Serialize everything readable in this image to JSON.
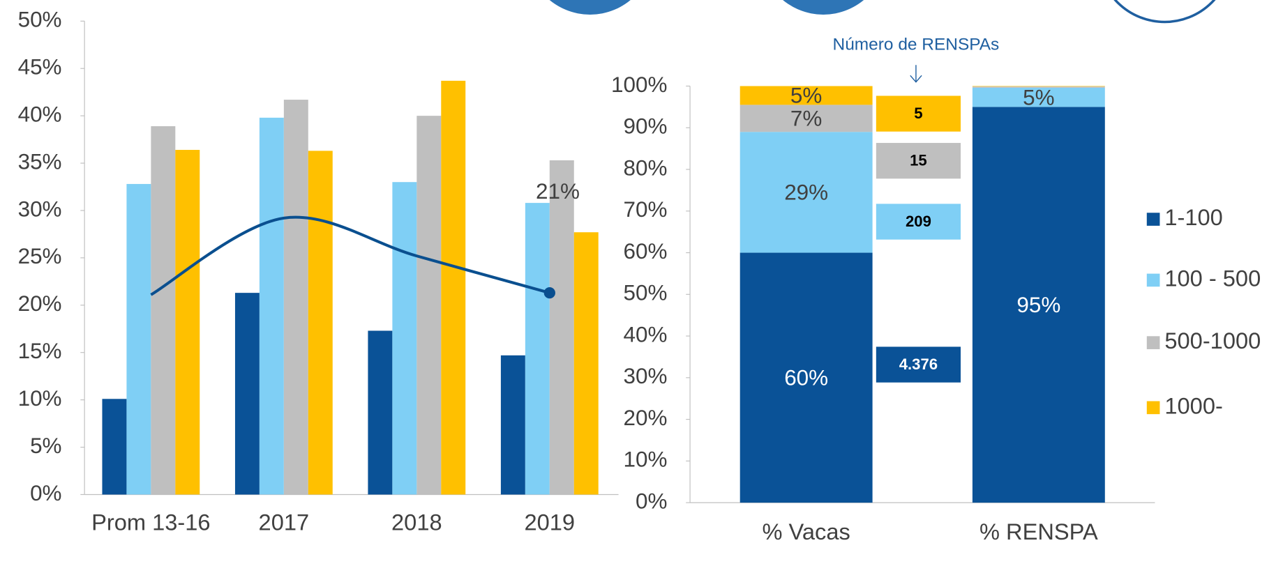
{
  "chart_data": [
    {
      "type": "bar",
      "categories": [
        "Prom 13-16",
        "2017",
        "2018",
        "2019"
      ],
      "series": [
        {
          "color": "#0a5297",
          "values": [
            10.1,
            21.3,
            17.3,
            14.7
          ]
        },
        {
          "color": "#7fcff5",
          "values": [
            32.8,
            39.8,
            33.0,
            30.8
          ]
        },
        {
          "color": "#bfbfbf",
          "values": [
            38.9,
            41.7,
            40.0,
            35.3
          ]
        },
        {
          "color": "#ffc000",
          "values": [
            36.4,
            36.3,
            43.7,
            27.7
          ]
        },
        {
          "type": "line",
          "color": "#0a4f8f",
          "values": [
            21.1,
            29.2,
            25.2,
            21.3
          ],
          "value_labels": [
            null,
            null,
            null,
            "21%"
          ]
        }
      ],
      "ylim": [
        0,
        50
      ],
      "yticks": [
        {
          "value": 0,
          "label": "0%"
        },
        {
          "value": 5,
          "label": "5%"
        },
        {
          "value": 10,
          "label": "10%"
        },
        {
          "value": 15,
          "label": "15%"
        },
        {
          "value": 20,
          "label": "20%"
        },
        {
          "value": 25,
          "label": "25%"
        },
        {
          "value": 30,
          "label": "30%"
        },
        {
          "value": 35,
          "label": "35%"
        },
        {
          "value": 40,
          "label": "40%"
        },
        {
          "value": 45,
          "label": "45%"
        },
        {
          "value": 50,
          "label": "50%"
        }
      ]
    },
    {
      "type": "stacked_bar",
      "categories": [
        "% Vacas",
        "% RENSPA"
      ],
      "series": [
        {
          "name": "1-100",
          "color": "#0a5297",
          "values": [
            60,
            95
          ],
          "value_labels": [
            "60%",
            "95%"
          ]
        },
        {
          "name": "100 - 500",
          "color": "#7fcff5",
          "values": [
            29,
            4.6
          ],
          "value_labels": [
            "29%",
            "5%"
          ]
        },
        {
          "name": "500-1000",
          "color": "#bfbfbf",
          "values": [
            6.5,
            0.3
          ],
          "value_labels": [
            "7%",
            null
          ]
        },
        {
          "name": "1000-",
          "color": "#ffc000",
          "values": [
            4.5,
            0.1
          ],
          "value_labels": [
            "5%",
            null
          ]
        }
      ],
      "ylim": [
        0,
        100
      ],
      "yticks": [
        {
          "value": 0,
          "label": "0%"
        },
        {
          "value": 10,
          "label": "10%"
        },
        {
          "value": 20,
          "label": "20%"
        },
        {
          "value": 30,
          "label": "30%"
        },
        {
          "value": 40,
          "label": "40%"
        },
        {
          "value": 50,
          "label": "50%"
        },
        {
          "value": 60,
          "label": "60%"
        },
        {
          "value": 70,
          "label": "70%"
        },
        {
          "value": 80,
          "label": "80%"
        },
        {
          "value": 90,
          "label": "90%"
        },
        {
          "value": 100,
          "label": "100%"
        }
      ],
      "annotation": "Número de RENSPAs",
      "box_labels": [
        "4.376",
        "209",
        "15",
        "5"
      ]
    }
  ]
}
